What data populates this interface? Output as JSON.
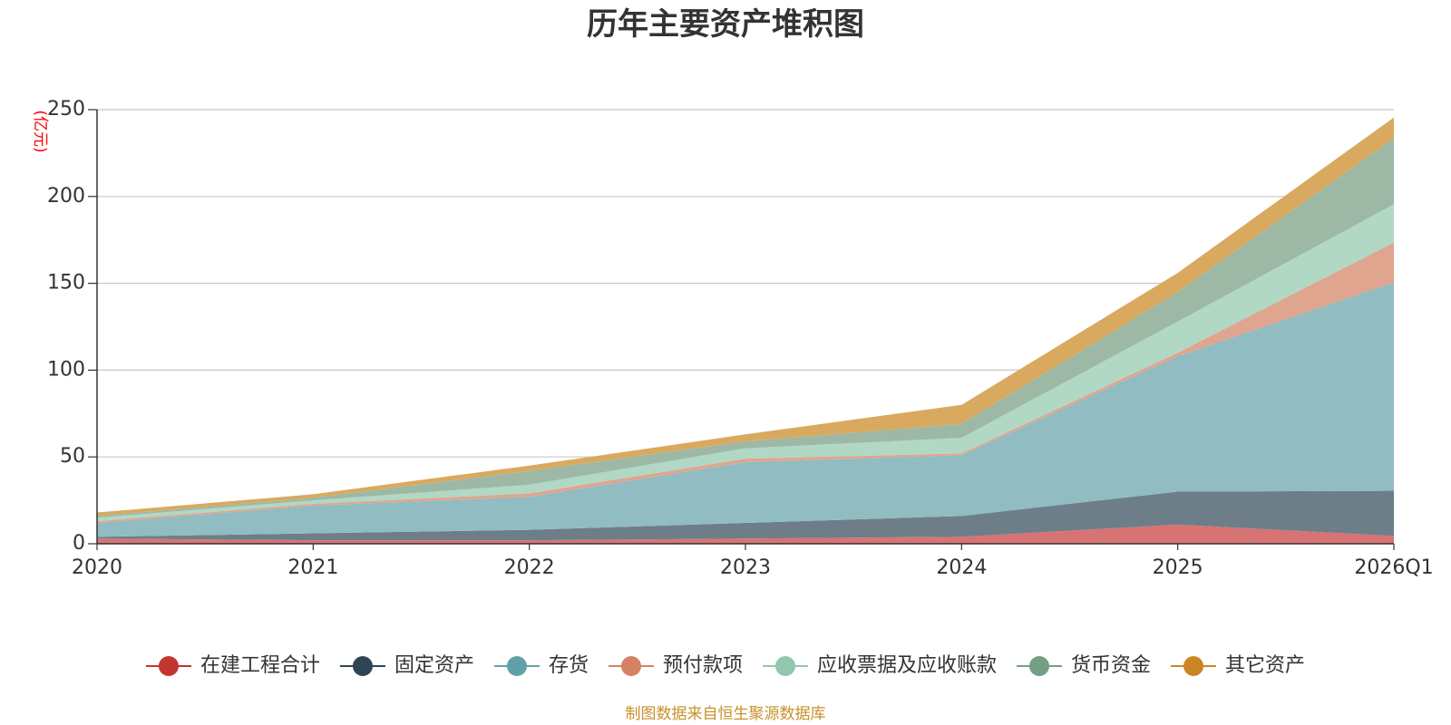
{
  "chart_data": {
    "type": "area",
    "stacked": true,
    "title": "历年主要资产堆积图",
    "unit_label": "(亿元)",
    "source": "制图数据来自恒生聚源数据库",
    "x": [
      "2020",
      "2021",
      "2022",
      "2023",
      "2024",
      "2025",
      "2026Q1"
    ],
    "ylim": [
      0,
      250
    ],
    "yticks": [
      0,
      50,
      100,
      150,
      200,
      250
    ],
    "grid": true,
    "legend_position": "bottom",
    "series": [
      {
        "name": "在建工程合计",
        "color": "#c23531",
        "fill": "#d87374",
        "values": [
          3,
          2,
          2,
          3,
          4,
          11,
          4.5
        ]
      },
      {
        "name": "固定资产",
        "color": "#2f4554",
        "fill": "#6e7e88",
        "values": [
          1,
          4,
          6,
          9,
          12,
          19,
          26
        ]
      },
      {
        "name": "存货",
        "color": "#61a0a8",
        "fill": "#90bcc2",
        "values": [
          8,
          16,
          19,
          35,
          35,
          78,
          120
        ]
      },
      {
        "name": "预付款项",
        "color": "#d48265",
        "fill": "#e0a58e",
        "values": [
          1,
          1,
          2,
          2,
          1,
          2,
          23
        ]
      },
      {
        "name": "应收票据及应收账款",
        "color": "#91c7ae",
        "fill": "#b0d8c5",
        "values": [
          2,
          2,
          5,
          6,
          9,
          18,
          22
        ]
      },
      {
        "name": "货币资金",
        "color": "#749f83",
        "fill": "#9db9a5",
        "values": [
          1,
          1.5,
          8,
          4,
          8,
          17,
          38
        ]
      },
      {
        "name": "其它资产",
        "color": "#ca8622",
        "fill": "#d9a95f",
        "values": [
          2,
          2,
          3,
          4,
          11,
          11,
          12
        ]
      }
    ]
  }
}
